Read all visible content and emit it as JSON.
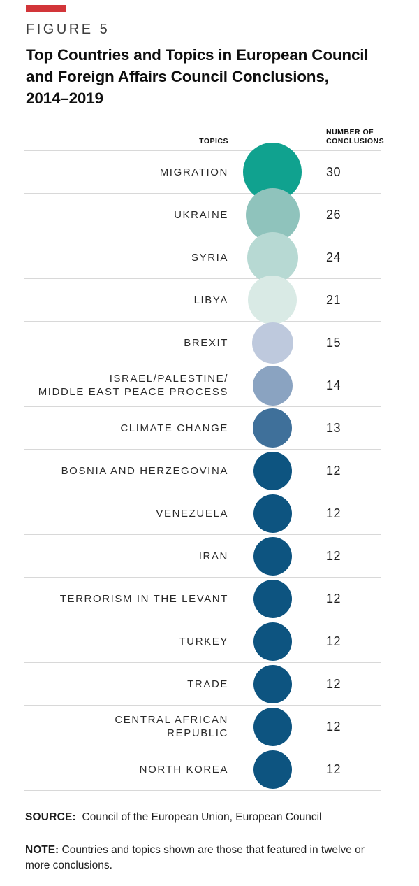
{
  "figure": {
    "label": "FIGURE 5",
    "accent_color": "#d23539"
  },
  "header": {
    "title_lines": [
      "Top Countries and Topics in European Council",
      "and Foreign Affairs Council Conclusions,",
      "2014–2019"
    ]
  },
  "chart_data": {
    "type": "bubble",
    "title": "Top Countries and Topics in European Council and Foreign Affairs Council Conclusions, 2014–2019",
    "columns": {
      "topic_header": "TOPICS",
      "value_header": "NUMBER OF CONCLUSIONS"
    },
    "layout_hints": {
      "bubble_scale": "area proportional to value",
      "color_ramp": "teal (high) to dark navy (low)",
      "row_separators": "#d8d8d8"
    },
    "rows": [
      {
        "topic": "MIGRATION",
        "value": 30,
        "color": "#10a28f",
        "diameter": 84
      },
      {
        "topic": "UKRAINE",
        "value": 26,
        "color": "#8fc3bc",
        "diameter": 77
      },
      {
        "topic": "SYRIA",
        "value": 24,
        "color": "#b7d9d3",
        "diameter": 73
      },
      {
        "topic": "LIBYA",
        "value": 21,
        "color": "#d9eae5",
        "diameter": 70
      },
      {
        "topic": "BREXIT",
        "value": 15,
        "color": "#bec9dd",
        "diameter": 59
      },
      {
        "topic": "ISRAEL/PALESTINE/\nMIDDLE EAST PEACE PROCESS",
        "value": 14,
        "color": "#8aa3c1",
        "diameter": 57
      },
      {
        "topic": "CLIMATE CHANGE",
        "value": 13,
        "color": "#3f709a",
        "diameter": 56
      },
      {
        "topic": "BOSNIA AND HERZEGOVINA",
        "value": 12,
        "color": "#0d5480",
        "diameter": 55
      },
      {
        "topic": "VENEZUELA",
        "value": 12,
        "color": "#0d5480",
        "diameter": 55
      },
      {
        "topic": "IRAN",
        "value": 12,
        "color": "#0d5480",
        "diameter": 55
      },
      {
        "topic": "TERRORISM IN THE LEVANT",
        "value": 12,
        "color": "#0d5480",
        "diameter": 55
      },
      {
        "topic": "TURKEY",
        "value": 12,
        "color": "#0d5480",
        "diameter": 55
      },
      {
        "topic": "TRADE",
        "value": 12,
        "color": "#0d5480",
        "diameter": 55
      },
      {
        "topic": "CENTRAL AFRICAN\nREPUBLIC",
        "value": 12,
        "color": "#0d5480",
        "diameter": 55
      },
      {
        "topic": "NORTH KOREA",
        "value": 12,
        "color": "#0d5480",
        "diameter": 55
      }
    ]
  },
  "footer": {
    "source_label": "SOURCE:",
    "source_text": "Council of the European Union, European Council",
    "note_label": "NOTE:",
    "note_text": "Countries and topics shown are those that featured in twelve or more conclusions."
  }
}
